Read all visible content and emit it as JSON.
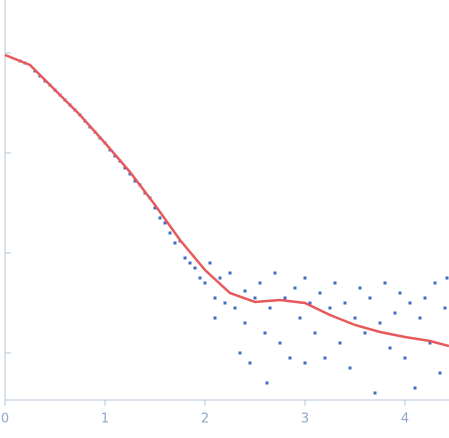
{
  "chart_data": {
    "type": "scatter",
    "xlim": [
      0,
      4.44
    ],
    "ylim": [
      0.53,
      4.53
    ],
    "xticks": [
      0,
      1,
      2,
      3,
      4
    ],
    "yticks": [
      1,
      2,
      3,
      4
    ],
    "points": {
      "color": "#3d6cc0",
      "x": [
        0.15,
        0.2,
        0.3,
        0.35,
        0.4,
        0.45,
        0.5,
        0.55,
        0.6,
        0.65,
        0.7,
        0.75,
        0.8,
        0.85,
        0.9,
        0.95,
        1.0,
        1.05,
        1.1,
        1.15,
        1.2,
        1.25,
        1.3,
        1.35,
        1.4,
        1.45,
        1.5,
        1.55,
        1.6,
        1.65,
        1.7,
        1.75,
        1.8,
        1.85,
        1.9,
        1.95,
        2.0,
        2.05,
        2.1,
        2.1,
        2.15,
        2.2,
        2.25,
        2.3,
        2.35,
        2.4,
        2.4,
        2.45,
        2.5,
        2.55,
        2.6,
        2.62,
        2.65,
        2.7,
        2.75,
        2.8,
        2.85,
        2.9,
        2.95,
        3.0,
        3.0,
        3.05,
        3.1,
        3.15,
        3.2,
        3.25,
        3.3,
        3.35,
        3.4,
        3.45,
        3.5,
        3.55,
        3.6,
        3.65,
        3.7,
        3.75,
        3.8,
        3.85,
        3.9,
        3.95,
        4.0,
        4.05,
        4.1,
        4.15,
        4.2,
        4.25,
        4.3,
        4.35,
        4.4,
        4.42
      ],
      "y": [
        3.92,
        3.9,
        3.82,
        3.77,
        3.72,
        3.68,
        3.63,
        3.58,
        3.53,
        3.48,
        3.43,
        3.38,
        3.32,
        3.26,
        3.21,
        3.15,
        3.1,
        3.03,
        2.97,
        2.92,
        2.85,
        2.79,
        2.72,
        2.68,
        2.6,
        2.55,
        2.45,
        2.35,
        2.3,
        2.2,
        2.1,
        2.12,
        1.95,
        1.9,
        1.85,
        1.75,
        1.7,
        1.9,
        1.55,
        1.35,
        1.75,
        1.5,
        1.8,
        1.45,
        1.0,
        1.62,
        1.3,
        0.9,
        1.55,
        1.7,
        1.2,
        0.7,
        1.45,
        1.8,
        1.1,
        1.55,
        0.95,
        1.65,
        1.35,
        1.75,
        0.9,
        1.5,
        1.2,
        1.6,
        0.95,
        1.45,
        1.7,
        1.1,
        1.5,
        0.85,
        1.35,
        1.65,
        1.2,
        1.55,
        0.6,
        1.3,
        1.7,
        1.05,
        1.4,
        1.6,
        0.95,
        1.5,
        0.65,
        1.35,
        1.55,
        1.1,
        1.7,
        0.8,
        1.45,
        1.75
      ]
    },
    "fit": {
      "color": "#e8595c",
      "x": [
        0,
        0.25,
        0.5,
        0.75,
        1,
        1.25,
        1.5,
        1.75,
        2,
        2.25,
        2.5,
        2.75,
        3,
        3.25,
        3.5,
        3.75,
        4,
        4.25,
        4.44
      ],
      "y": [
        3.98,
        3.88,
        3.63,
        3.38,
        3.1,
        2.81,
        2.48,
        2.13,
        1.83,
        1.6,
        1.51,
        1.53,
        1.5,
        1.38,
        1.28,
        1.21,
        1.16,
        1.12,
        1.07
      ]
    }
  }
}
